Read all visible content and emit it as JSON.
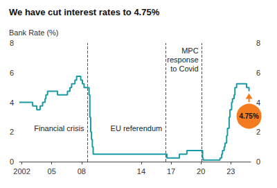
{
  "chart_data": {
    "type": "line",
    "title": "We have cut interest rates to 4.75%",
    "y_label": "Bank Rate (%)",
    "x": [
      2001.75,
      2003.083,
      2003.5,
      2003.833,
      2004.083,
      2004.333,
      2004.417,
      2004.583,
      2005.583,
      2006.583,
      2006.833,
      2007.0,
      2007.333,
      2007.5,
      2007.917,
      2008.083,
      2008.25,
      2008.75,
      2008.833,
      2008.917,
      2009.0,
      2009.083,
      2009.167,
      2016.583,
      2017.833,
      2018.583,
      2020.167,
      2020.22,
      2021.917,
      2022.083,
      2022.167,
      2022.333,
      2022.417,
      2022.583,
      2022.667,
      2022.833,
      2022.917,
      2023.083,
      2023.167,
      2023.333,
      2023.417,
      2023.583,
      2024.583,
      2024.833
    ],
    "values": [
      4,
      3.75,
      3.5,
      3.75,
      4,
      4.25,
      4.5,
      4.75,
      4.5,
      4.75,
      5,
      5.25,
      5.5,
      5.75,
      5.5,
      5.25,
      5,
      4.5,
      3,
      2,
      1.5,
      1,
      0.5,
      0.25,
      0.5,
      0.75,
      0.25,
      0.1,
      0.25,
      0.5,
      0.75,
      1,
      1.25,
      1.75,
      2.25,
      3,
      3.5,
      4,
      4.25,
      4.5,
      5,
      5.25,
      5,
      4.75
    ],
    "color": "#1a9aa4",
    "line_style": "step",
    "xlim": [
      2001.75,
      2025
    ],
    "xticks": [
      2002,
      {
        "value": 2005,
        "label": "05"
      },
      {
        "value": 2008,
        "label": "08"
      },
      {
        "value": 2014,
        "label": "14"
      },
      {
        "value": 2017,
        "label": "17"
      },
      {
        "value": 2020,
        "label": "20"
      },
      {
        "value": 2023,
        "label": "23"
      }
    ],
    "ylim": [
      0,
      8
    ],
    "yticks": [
      0,
      2,
      4,
      6,
      8
    ],
    "grid": false,
    "annotations": [
      {
        "x": 2008.6,
        "label": "Financial crisis"
      },
      {
        "x": 2016.45,
        "label": "EU referendum"
      },
      {
        "x": 2020.1,
        "label": "MPC\nresponse\nto Covid"
      }
    ],
    "callout": {
      "value": 4.75,
      "label": "4.75%",
      "color": "#f47b20"
    }
  }
}
